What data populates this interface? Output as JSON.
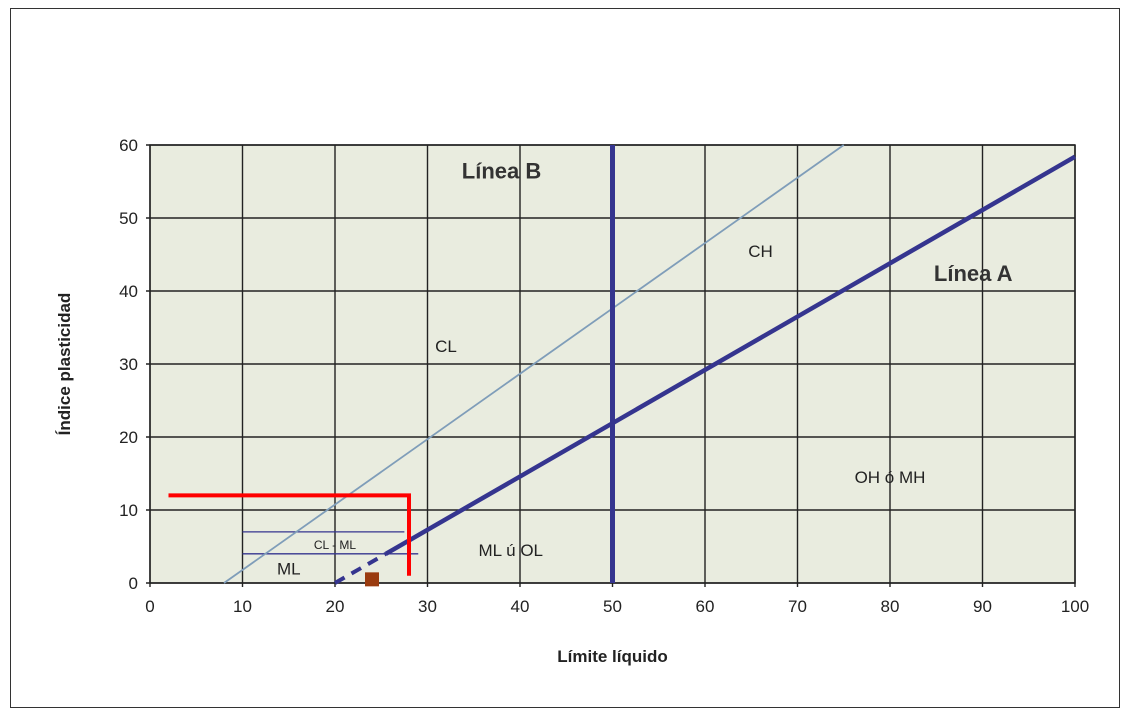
{
  "chart_data": {
    "type": "line",
    "title": "",
    "xlabel": "Límite líquido",
    "ylabel": "Índice plasticidad",
    "xlim": [
      0,
      100
    ],
    "ylim": [
      0,
      60
    ],
    "xticks": [
      0,
      10,
      20,
      30,
      40,
      50,
      60,
      70,
      80,
      90,
      100
    ],
    "yticks": [
      0,
      10,
      20,
      30,
      40,
      50,
      60
    ],
    "grid": true,
    "colors": {
      "plot_background": "#e9ecdf",
      "line_a": "#35358f",
      "line_b": "#35358f",
      "upper_line": "#7f9db9",
      "band_lines": "#35358f",
      "highlight": "#ff0000",
      "point": "#9a3b0f"
    },
    "lines": [
      {
        "name": "Línea A",
        "x": [
          25.5,
          100
        ],
        "y": [
          4,
          58.4
        ]
      },
      {
        "name": "Línea B",
        "x": [
          50,
          50
        ],
        "y": [
          0,
          60
        ]
      }
    ],
    "upper_limit_line": {
      "x": [
        8,
        75
      ],
      "y": [
        0,
        60
      ]
    },
    "line_a_dashed_segment": {
      "x": [
        20,
        25.5
      ],
      "y": [
        0,
        4
      ]
    },
    "bands": [
      {
        "x": [
          10,
          29
        ],
        "y": [
          4,
          4
        ]
      },
      {
        "x": [
          10,
          27.5
        ],
        "y": [
          7,
          7
        ]
      }
    ],
    "highlight_lines": [
      {
        "x": [
          2,
          28
        ],
        "y": [
          12,
          12
        ]
      },
      {
        "x": [
          28,
          28
        ],
        "y": [
          12,
          1
        ]
      }
    ],
    "points": [
      {
        "x": 24,
        "y": 0.5
      }
    ],
    "line_labels": [
      {
        "text": "Línea A",
        "x": 89,
        "y": 42.5
      },
      {
        "text": "Línea B",
        "x": 38,
        "y": 56.5
      }
    ],
    "regions": [
      {
        "text": "CL",
        "x": 32,
        "y": 32.5
      },
      {
        "text": "CH",
        "x": 66,
        "y": 45.5
      },
      {
        "text": "OH ó MH",
        "x": 80,
        "y": 14.5
      },
      {
        "text": "ML ú OL",
        "x": 39,
        "y": 4.5
      },
      {
        "text": "ML",
        "x": 15,
        "y": 2
      },
      {
        "text": "CL - ML",
        "x": 20,
        "y": 5.5
      }
    ]
  }
}
